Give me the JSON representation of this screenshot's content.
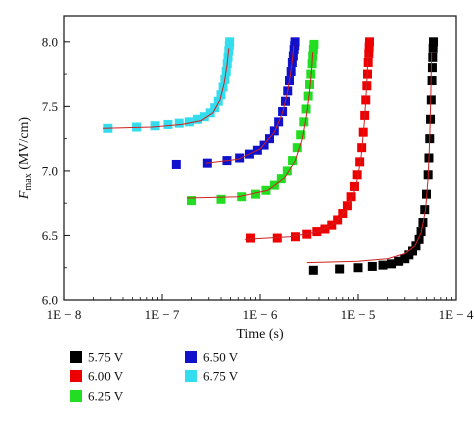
{
  "chart_data": {
    "type": "scatter",
    "title": "",
    "xlabel": "Time (s)",
    "ylabel_main": "F",
    "ylabel_sub": "max",
    "ylabel_unit": " (MV/cm)",
    "xscale": "log",
    "xlim": [
      1e-08,
      0.0001
    ],
    "ylim": [
      6.0,
      8.2
    ],
    "x_tick_values": [
      1e-08,
      1e-07,
      1e-06,
      1e-05,
      0.0001
    ],
    "x_tick_labels": [
      "1E − 8",
      "1E − 7",
      "1E − 6",
      "1E − 5",
      "1E − 4"
    ],
    "y_tick_values": [
      6.0,
      6.5,
      7.0,
      7.5,
      8.0
    ],
    "y_tick_labels": [
      "6.0",
      "6.5",
      "7.0",
      "7.5",
      "8.0"
    ],
    "fit_color": "#cc2222",
    "legend_position": "bottom",
    "series": [
      {
        "name": "5.75 V",
        "color": "#000000",
        "x": [
          3.5e-06,
          6.5e-06,
          1e-05,
          1.4e-05,
          1.8e-05,
          2.2e-05,
          2.6e-05,
          3e-05,
          3.3e-05,
          3.6e-05,
          3.9e-05,
          4.2e-05,
          4.4e-05,
          4.6e-05,
          4.8e-05,
          5e-05,
          5.2e-05,
          5.3e-05,
          5.4e-05,
          5.5e-05,
          5.6e-05,
          5.7e-05,
          5.75e-05,
          5.8e-05,
          5.85e-05,
          5.9e-05
        ],
        "y": [
          6.23,
          6.24,
          6.25,
          6.26,
          6.27,
          6.28,
          6.3,
          6.32,
          6.35,
          6.38,
          6.42,
          6.47,
          6.53,
          6.6,
          6.7,
          6.82,
          6.97,
          7.1,
          7.25,
          7.4,
          7.55,
          7.7,
          7.8,
          7.88,
          7.95,
          8.0
        ],
        "fit_x": [
          3e-06,
          1e-05,
          2e-05,
          3e-05,
          3.8e-05,
          4.4e-05,
          4.9e-05,
          5.2e-05,
          5.4e-05,
          5.55e-05,
          5.65e-05
        ],
        "fit_y": [
          6.29,
          6.3,
          6.32,
          6.36,
          6.42,
          6.52,
          6.7,
          6.95,
          7.25,
          7.6,
          7.92
        ]
      },
      {
        "name": "6.00 V",
        "color": "#ee0000",
        "x": [
          8e-07,
          1.5e-06,
          2.3e-06,
          3e-06,
          3.8e-06,
          4.6e-06,
          5.4e-06,
          6.2e-06,
          7e-06,
          7.8e-06,
          8.5e-06,
          9.2e-06,
          9.8e-06,
          1.04e-05,
          1.09e-05,
          1.13e-05,
          1.17e-05,
          1.2e-05,
          1.23e-05,
          1.25e-05,
          1.27e-05,
          1.29e-05,
          1.3e-05,
          1.31e-05
        ],
        "y": [
          6.48,
          6.48,
          6.49,
          6.51,
          6.53,
          6.55,
          6.58,
          6.62,
          6.67,
          6.73,
          6.8,
          6.88,
          6.97,
          7.07,
          7.18,
          7.3,
          7.43,
          7.55,
          7.66,
          7.75,
          7.84,
          7.91,
          7.96,
          8.0
        ],
        "fit_x": [
          7e-07,
          2e-06,
          4e-06,
          6e-06,
          8e-06,
          9.5e-06,
          1.07e-05,
          1.16e-05,
          1.22e-05,
          1.27e-05
        ],
        "fit_y": [
          6.47,
          6.49,
          6.53,
          6.6,
          6.72,
          6.88,
          7.1,
          7.38,
          7.65,
          7.92
        ]
      },
      {
        "name": "6.25 V",
        "color": "#22dd22",
        "x": [
          2e-07,
          4e-07,
          6.5e-07,
          9e-07,
          1.15e-06,
          1.4e-06,
          1.65e-06,
          1.9e-06,
          2.15e-06,
          2.4e-06,
          2.6e-06,
          2.8e-06,
          2.95e-06,
          3.1e-06,
          3.2e-06,
          3.3e-06,
          3.4e-06,
          3.45e-06,
          3.5e-06,
          3.55e-06
        ],
        "y": [
          6.77,
          6.78,
          6.8,
          6.82,
          6.85,
          6.89,
          6.94,
          7.0,
          7.08,
          7.18,
          7.28,
          7.38,
          7.48,
          7.58,
          7.67,
          7.75,
          7.83,
          7.89,
          7.94,
          7.98
        ],
        "fit_x": [
          1.8e-07,
          6e-07,
          1.2e-06,
          1.8e-06,
          2.3e-06,
          2.7e-06,
          3e-06,
          3.2e-06,
          3.35e-06,
          3.45e-06
        ],
        "fit_y": [
          6.79,
          6.8,
          6.85,
          6.95,
          7.08,
          7.25,
          7.45,
          7.62,
          7.78,
          7.92
        ]
      },
      {
        "name": "6.50 V",
        "color": "#1111cc",
        "x": [
          1.4e-07,
          2.9e-07,
          4.6e-07,
          6.2e-07,
          7.8e-07,
          9.4e-07,
          1.1e-06,
          1.25e-06,
          1.4e-06,
          1.55e-06,
          1.7e-06,
          1.82e-06,
          1.92e-06,
          2e-06,
          2.08e-06,
          2.14e-06,
          2.19e-06,
          2.23e-06,
          2.26e-06,
          2.28e-06
        ],
        "y": [
          7.05,
          7.06,
          7.08,
          7.1,
          7.13,
          7.16,
          7.2,
          7.25,
          7.31,
          7.38,
          7.46,
          7.54,
          7.62,
          7.7,
          7.77,
          7.84,
          7.89,
          7.94,
          7.97,
          8.0
        ],
        "fit_x": [
          2.8e-07,
          6e-07,
          1e-06,
          1.4e-06,
          1.7e-06,
          1.9e-06,
          2.05e-06,
          2.15e-06,
          2.22e-06
        ],
        "fit_y": [
          7.06,
          7.09,
          7.17,
          7.3,
          7.45,
          7.6,
          7.75,
          7.87,
          7.97
        ]
      },
      {
        "name": "6.75 V",
        "color": "#33ddee",
        "x": [
          2.8e-08,
          5.5e-08,
          8.5e-08,
          1.15e-07,
          1.5e-07,
          1.9e-07,
          2.3e-07,
          2.7e-07,
          3.1e-07,
          3.45e-07,
          3.75e-07,
          4e-07,
          4.2e-07,
          4.38e-07,
          4.52e-07,
          4.63e-07,
          4.72e-07,
          4.8e-07,
          4.86e-07,
          4.9e-07
        ],
        "y": [
          7.33,
          7.34,
          7.35,
          7.36,
          7.37,
          7.38,
          7.4,
          7.42,
          7.45,
          7.49,
          7.54,
          7.59,
          7.65,
          7.71,
          7.77,
          7.83,
          7.88,
          7.93,
          7.97,
          8.0
        ],
        "fit_x": [
          2.5e-08,
          8e-08,
          1.6e-07,
          2.5e-07,
          3.3e-07,
          3.9e-07,
          4.3e-07,
          4.6e-07,
          4.8e-07
        ],
        "fit_y": [
          7.33,
          7.34,
          7.36,
          7.39,
          7.45,
          7.55,
          7.68,
          7.82,
          7.95
        ]
      }
    ],
    "legend_order": [
      0,
      3,
      1,
      4,
      2
    ]
  }
}
